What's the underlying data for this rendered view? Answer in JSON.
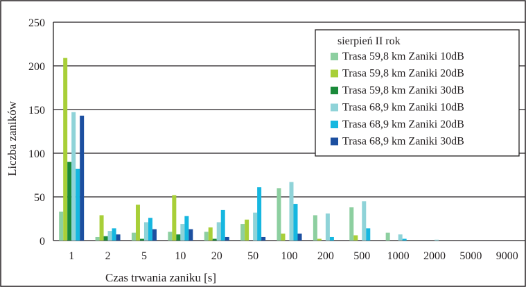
{
  "chart_data": {
    "type": "bar",
    "title": "",
    "xlabel": "Czas trwania zaniku [s]",
    "ylabel": "Liczba zaników",
    "ylim": [
      0,
      250
    ],
    "yticks": [
      0,
      50,
      100,
      150,
      200,
      250
    ],
    "grid": true,
    "legend_title": "sierpień II rok",
    "legend_position": "top-right",
    "categories": [
      "1",
      "2",
      "5",
      "10",
      "20",
      "50",
      "100",
      "200",
      "500",
      "1000",
      "2000",
      "5000",
      "9000"
    ],
    "series": [
      {
        "name": "Trasa 59,8 km Zaniki 10dB",
        "color": "#8dcfa0",
        "values": [
          33,
          4,
          9,
          10,
          10,
          19,
          60,
          29,
          38,
          9,
          0,
          0,
          0
        ]
      },
      {
        "name": "Trasa 59,8 km Zaniki 20dB",
        "color": "#a8cf38",
        "values": [
          209,
          29,
          41,
          52,
          15,
          24,
          8,
          2,
          6,
          0,
          0,
          0,
          0
        ]
      },
      {
        "name": "Trasa 59,8 km Zaniki 30dB",
        "color": "#1a8a3a",
        "values": [
          90,
          5,
          2,
          7,
          2,
          0,
          0,
          0,
          0,
          0,
          0,
          0,
          0
        ]
      },
      {
        "name": "Trasa 68,9 km Zaniki 10dB",
        "color": "#8fd3d8",
        "values": [
          147,
          11,
          21,
          19,
          21,
          32,
          67,
          31,
          45,
          7,
          1,
          0,
          0
        ]
      },
      {
        "name": "Trasa 68,9 km Zaniki 20dB",
        "color": "#16b7e0",
        "values": [
          82,
          14,
          26,
          28,
          35,
          61,
          42,
          4,
          14,
          2,
          0,
          0,
          0
        ]
      },
      {
        "name": "Trasa 68,9 km Zaniki 30dB",
        "color": "#1c4fa0",
        "values": [
          143,
          7,
          13,
          13,
          4,
          4,
          8,
          0,
          0,
          0,
          0,
          0,
          0
        ]
      }
    ]
  }
}
